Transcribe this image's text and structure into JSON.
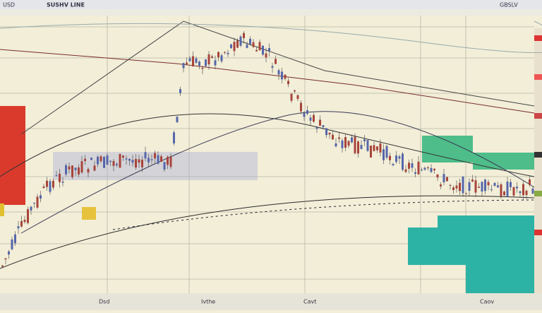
{
  "toolbar": {
    "symbol": "USD",
    "title": "SUSHV LINE",
    "right": "GBSLV"
  },
  "footer": {
    "labels": [
      "Dsd",
      "Ivthe",
      "Cavt",
      "Caov"
    ]
  }
}
